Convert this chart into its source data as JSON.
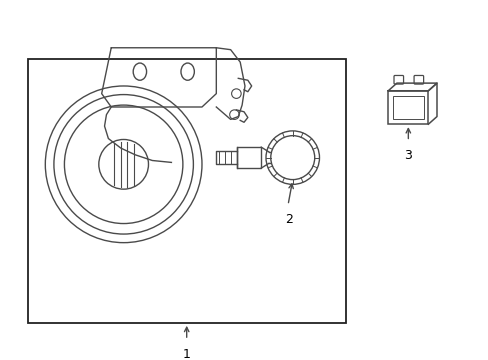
{
  "bg_color": "#ffffff",
  "line_color": "#4a4a4a",
  "box_color": "#000000",
  "figsize": [
    4.89,
    3.6
  ],
  "dpi": 100,
  "label_1": "1",
  "label_2": "2",
  "label_3": "3"
}
